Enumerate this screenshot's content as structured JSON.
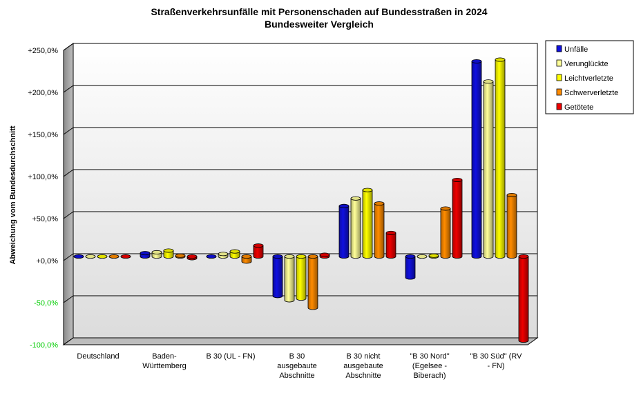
{
  "chart_data": {
    "type": "bar",
    "title": "Straßenverkehrsunfälle mit Personenschaden auf Bundesstraßen in 2024",
    "subtitle": "Bundesweiter Vergleich",
    "ylabel": "Abweichung vom Bundesdurchschnitt",
    "xlabel": "",
    "ylim": [
      -100,
      250
    ],
    "ytick_values": [
      -100,
      -50,
      0,
      50,
      100,
      150,
      200,
      250
    ],
    "ytick_labels": [
      "-100,0%",
      "-50,0%",
      "+0,0%",
      "+50,0%",
      "+100,0%",
      "+150,0%",
      "+200,0%",
      "+250,0%"
    ],
    "negative_tick_color": "#00cc00",
    "grid": true,
    "legend_position": "top-right",
    "categories": [
      [
        "Deutschland"
      ],
      [
        "Baden-",
        "Württemberg"
      ],
      [
        "B 30 (UL - FN)"
      ],
      [
        "B 30",
        "ausgebaute",
        "Abschnitte"
      ],
      [
        "B 30 nicht",
        "ausgebaute",
        "Abschnitte"
      ],
      [
        "\"B 30 Nord\"",
        "(Egelsee -",
        "Biberach)"
      ],
      [
        "\"B 30 Süd\" (RV",
        "- FN)"
      ]
    ],
    "series": [
      {
        "name": "Unfälle",
        "color": "#1010e0",
        "values": [
          0,
          4,
          0,
          -47,
          60,
          -25,
          232
        ]
      },
      {
        "name": "Verunglückte",
        "color": "#ffff99",
        "values": [
          0,
          5,
          3,
          -52,
          69,
          0,
          208
        ]
      },
      {
        "name": "Leichtverletzte",
        "color": "#ffff00",
        "values": [
          0,
          7,
          6,
          -50,
          79,
          1,
          234
        ]
      },
      {
        "name": "Schwerverletzte",
        "color": "#ff8c00",
        "values": [
          0,
          1,
          -6,
          -61,
          63,
          57,
          73
        ]
      },
      {
        "name": "Getötete",
        "color": "#ee0000",
        "values": [
          0,
          -2,
          13,
          2,
          28,
          91,
          -100
        ]
      }
    ]
  }
}
